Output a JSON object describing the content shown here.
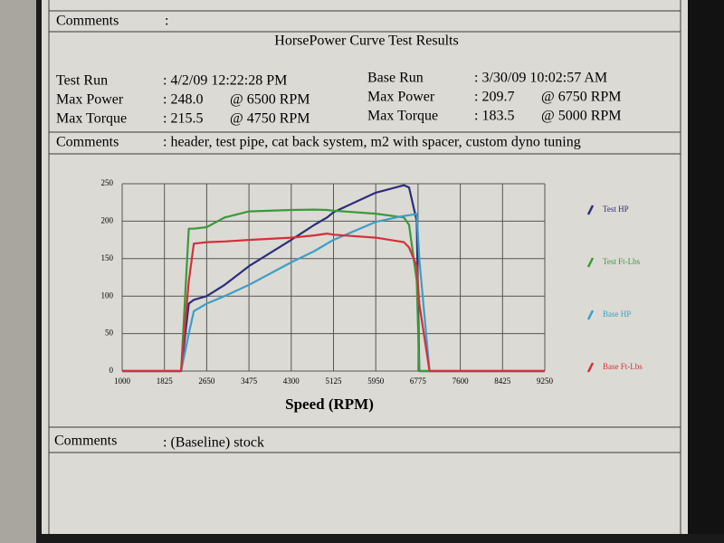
{
  "top_comments": {
    "label": "Comments",
    "colon": ":"
  },
  "info": {
    "left": [
      {
        "label": "Test Run",
        "value": ": 4/2/09 12:22:28 PM"
      },
      {
        "label": "Max Power",
        "value": ": 248.0",
        "rpm": "@ 6500  RPM"
      },
      {
        "label": "Max Torque",
        "value": ": 215.5",
        "rpm": "@ 4750  RPM"
      }
    ],
    "right": [
      {
        "label": "Base Run",
        "value": ": 3/30/09 10:02:57 AM"
      },
      {
        "label": "Max Power",
        "value": ": 209.7",
        "rpm": "@ 6750  RPM"
      },
      {
        "label": "Max Torque",
        "value": ": 183.5",
        "rpm": "@ 5000  RPM"
      }
    ]
  },
  "test_comments": {
    "label": "Comments",
    "value": ": header, test pipe, cat back system, m2  with spacer, custom dyno tuning"
  },
  "base_comments": {
    "label": "Comments",
    "value": ": (Baseline) stock"
  },
  "chart_data": {
    "type": "line",
    "title": "HorsePower Curve Test Results",
    "x_label": "Speed (RPM)",
    "x": [
      1000,
      1825,
      2150,
      2300,
      2400,
      2650,
      3000,
      3475,
      4300,
      4750,
      5000,
      5125,
      5950,
      6500,
      6600,
      6750,
      6800,
      7000,
      7600,
      8425,
      9250
    ],
    "series": [
      {
        "name": "Test HP",
        "color": "#2b2f7a",
        "values": [
          0,
          0,
          0,
          90,
          95,
          100,
          115,
          140,
          175,
          195,
          205,
          212,
          238,
          248,
          245,
          200,
          0,
          0,
          0,
          0,
          0
        ]
      },
      {
        "name": "Test Ft-Lbs",
        "color": "#3a9a3a",
        "values": [
          0,
          0,
          0,
          190,
          190,
          192,
          205,
          213,
          215,
          215.5,
          215,
          214,
          210,
          205,
          195,
          120,
          0,
          0,
          0,
          0,
          0
        ]
      },
      {
        "name": "Base HP",
        "color": "#3b9fc9",
        "values": [
          0,
          0,
          0,
          50,
          80,
          90,
          100,
          115,
          145,
          160,
          170,
          175,
          199,
          207,
          208,
          209.7,
          150,
          0,
          0,
          0,
          0
        ]
      },
      {
        "name": "Base Ft-Lbs",
        "color": "#d4303a",
        "values": [
          0,
          0,
          0,
          120,
          170,
          172,
          173,
          175,
          178,
          181,
          183.5,
          182,
          178,
          172,
          165,
          140,
          90,
          0,
          0,
          0,
          0
        ]
      }
    ],
    "xlim": [
      1000,
      9250
    ],
    "xticks": [
      1000,
      1825,
      2650,
      3475,
      4300,
      5125,
      5950,
      6775,
      7600,
      8425,
      9250
    ],
    "ylim": [
      0,
      250
    ],
    "yticks": [
      0,
      50,
      100,
      150,
      200,
      250
    ],
    "grid": true,
    "legend": "right"
  }
}
